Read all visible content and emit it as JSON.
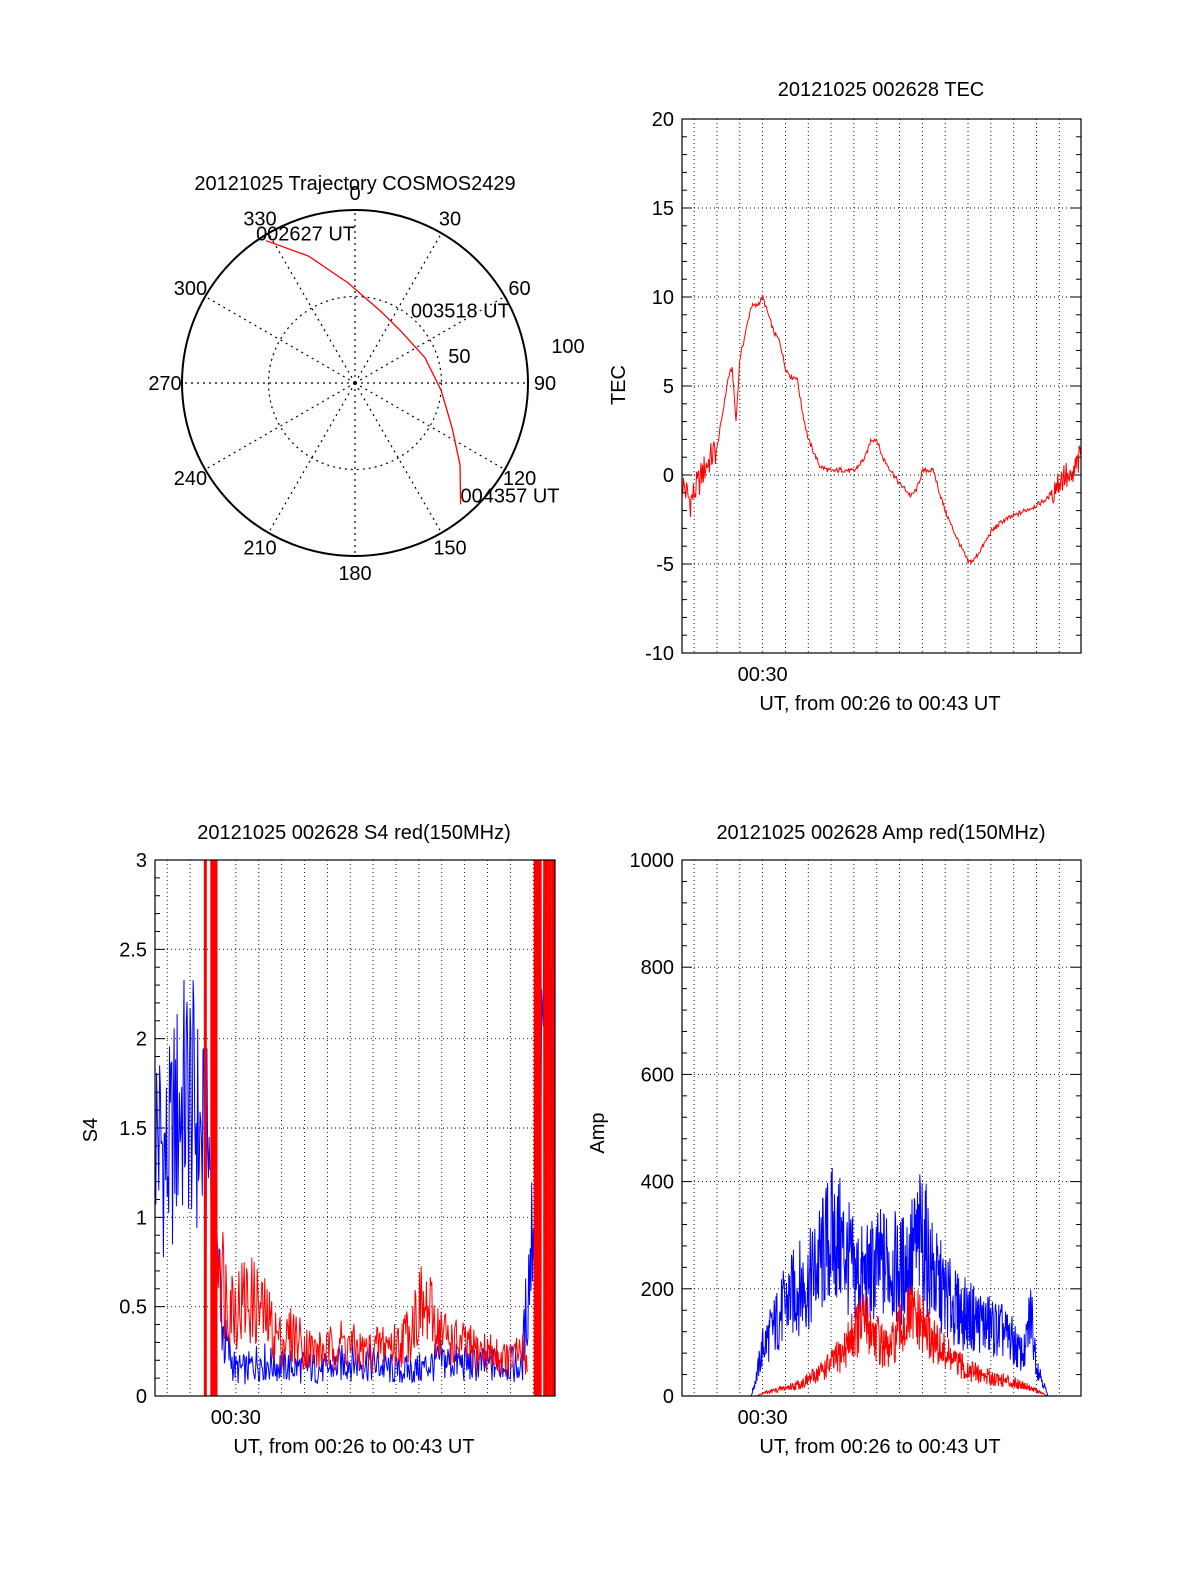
{
  "colors": {
    "red": "#ff0000",
    "blue": "#0000ff",
    "axis": "#000000",
    "grid": "#000000"
  },
  "chart_data": [
    {
      "id": "trajectory",
      "type": "polar",
      "title": "20121025 Trajectory COSMOS2429",
      "angle_labels": [
        "0",
        "30",
        "60",
        "90",
        "120",
        "150",
        "180",
        "210",
        "240",
        "270",
        "300",
        "330"
      ],
      "radial_labels": [
        "50",
        "100"
      ],
      "r_max": 100,
      "grid": true,
      "track": {
        "color": "#ff0000",
        "points": [
          {
            "az": 328,
            "el_r": 97
          },
          {
            "az": 340,
            "el_r": 78
          },
          {
            "az": 356,
            "el_r": 58
          },
          {
            "az": 20,
            "el_r": 44
          },
          {
            "az": 42,
            "el_r": 40
          },
          {
            "az": 70,
            "el_r": 43
          },
          {
            "az": 95,
            "el_r": 50
          },
          {
            "az": 115,
            "el_r": 62
          },
          {
            "az": 128,
            "el_r": 77
          },
          {
            "az": 139,
            "el_r": 93
          }
        ]
      },
      "annotations": [
        {
          "text": "002627 UT",
          "az": 328,
          "el_r": 97
        },
        {
          "text": "003518 UT",
          "az": 56,
          "el_r": 40
        },
        {
          "text": "004357 UT",
          "az": 139,
          "el_r": 93
        }
      ]
    },
    {
      "id": "tec",
      "type": "line",
      "title": "20121025 002628 TEC",
      "xlabel": "UT, from 00:26 to 00:43 UT",
      "ylabel": "TEC",
      "xlim": [
        "00:26:28",
        "00:43:57"
      ],
      "ylim": [
        -10,
        20
      ],
      "yticks": [
        "-10",
        "-5",
        "0",
        "5",
        "10",
        "15",
        "20"
      ],
      "xtick_labels": [
        {
          "time": "00:30:00",
          "label": "00:30"
        }
      ],
      "grid": true,
      "series": [
        {
          "color": "#ff0000",
          "x": [
            "00:26:30",
            "00:26:50",
            "00:27:10",
            "00:27:30",
            "00:27:45",
            "00:28:00",
            "00:28:15",
            "00:28:30",
            "00:28:40",
            "00:28:50",
            "00:29:00",
            "00:29:15",
            "00:29:30",
            "00:29:45",
            "00:30:00",
            "00:30:15",
            "00:30:30",
            "00:30:45",
            "00:31:00",
            "00:31:15",
            "00:31:30",
            "00:31:45",
            "00:32:00",
            "00:32:30",
            "00:33:00",
            "00:33:30",
            "00:34:00",
            "00:34:30",
            "00:34:45",
            "00:35:00",
            "00:35:15",
            "00:35:30",
            "00:35:45",
            "00:36:00",
            "00:36:15",
            "00:36:30",
            "00:36:45",
            "00:37:00",
            "00:37:15",
            "00:37:30",
            "00:37:45",
            "00:38:00",
            "00:38:15",
            "00:38:30",
            "00:38:45",
            "00:39:00",
            "00:39:15",
            "00:39:30",
            "00:39:45",
            "00:40:00",
            "00:40:30",
            "00:41:00",
            "00:41:30",
            "00:42:00",
            "00:42:30",
            "00:42:45",
            "00:43:00",
            "00:43:15",
            "00:43:30",
            "00:43:45",
            "00:43:57"
          ],
          "values": [
            -0.5,
            -1.5,
            -0.5,
            0.5,
            1.0,
            1.5,
            3.5,
            5.5,
            6.0,
            3.0,
            6.5,
            8.0,
            9.5,
            9.5,
            10.0,
            9.0,
            8.0,
            7.5,
            6.0,
            5.5,
            5.5,
            3.5,
            2.0,
            0.5,
            0.2,
            0.3,
            0.2,
            1.0,
            2.0,
            2.0,
            1.0,
            0.5,
            0.0,
            -0.5,
            -0.8,
            -1.2,
            -0.8,
            0.2,
            0.3,
            0.2,
            -1.0,
            -2.0,
            -2.8,
            -3.5,
            -4.2,
            -4.9,
            -4.8,
            -4.3,
            -3.8,
            -3.2,
            -2.6,
            -2.3,
            -2.0,
            -1.7,
            -1.3,
            -0.8,
            -0.3,
            0.0,
            -0.5,
            0.5,
            1.0
          ]
        }
      ]
    },
    {
      "id": "s4",
      "type": "line",
      "title": "20121025 002628 S4 red(150MHz)",
      "xlabel": "UT, from 00:26 to 00:43 UT",
      "ylabel": "S4",
      "xlim": [
        "00:26:28",
        "00:43:57"
      ],
      "ylim": [
        0,
        3
      ],
      "yticks": [
        "0",
        "0.5",
        "1",
        "1.5",
        "2",
        "2.5",
        "3"
      ],
      "xtick_labels": [
        {
          "time": "00:30:00",
          "label": "00:30"
        }
      ],
      "grid": true,
      "series": [
        {
          "color": "#0000ff",
          "x": [
            "00:26:30",
            "00:27:00",
            "00:27:30",
            "00:28:00",
            "00:28:30",
            "00:29:00",
            "00:29:15",
            "00:29:30",
            "00:30:00",
            "00:30:30",
            "00:31:00",
            "00:31:30",
            "00:32:00",
            "00:33:00",
            "00:34:00",
            "00:35:00",
            "00:36:00",
            "00:37:00",
            "00:38:00",
            "00:39:00",
            "00:40:00",
            "00:41:00",
            "00:42:00",
            "00:42:30",
            "00:43:00",
            "00:43:15",
            "00:43:30",
            "00:43:57"
          ],
          "values": [
            1.5,
            1.3,
            1.6,
            1.7,
            1.4,
            1.3,
            0.7,
            0.3,
            0.15,
            0.15,
            0.2,
            0.18,
            0.17,
            0.16,
            0.15,
            0.2,
            0.18,
            0.14,
            0.15,
            0.2,
            0.18,
            0.17,
            0.18,
            0.15,
            1.0,
            1.7,
            2.2,
            1.8
          ]
        },
        {
          "color": "#ff0000",
          "x": [
            "00:29:00",
            "00:29:15",
            "00:29:30",
            "00:30:00",
            "00:30:30",
            "00:31:00",
            "00:31:30",
            "00:32:00",
            "00:32:30",
            "00:33:00",
            "00:33:30",
            "00:34:00",
            "00:34:30",
            "00:35:00",
            "00:35:30",
            "00:36:00",
            "00:36:30",
            "00:37:00",
            "00:37:30",
            "00:38:00",
            "00:38:30",
            "00:39:00",
            "00:39:30",
            "00:40:00",
            "00:40:30",
            "00:41:00",
            "00:41:30",
            "00:42:00",
            "00:42:30",
            "00:42:45"
          ],
          "values": [
            1.4,
            0.9,
            0.6,
            0.5,
            0.55,
            0.5,
            0.4,
            0.3,
            0.35,
            0.28,
            0.25,
            0.25,
            0.3,
            0.28,
            0.25,
            0.25,
            0.3,
            0.28,
            0.35,
            0.5,
            0.45,
            0.35,
            0.3,
            0.28,
            0.25,
            0.25,
            0.22,
            0.2,
            0.25,
            0.2
          ]
        }
      ],
      "red_spike_times": [
        "00:28:40",
        "00:28:57",
        "00:29:04",
        "00:29:08",
        "00:43:05",
        "00:43:12",
        "00:43:18",
        "00:43:30",
        "00:43:36",
        "00:43:44",
        "00:43:52"
      ]
    },
    {
      "id": "amp",
      "type": "line",
      "title": "20121025 002628 Amp red(150MHz)",
      "xlabel": "UT, from 00:26 to 00:43 UT",
      "ylabel": "Amp",
      "xlim": [
        "00:26:28",
        "00:43:57"
      ],
      "ylim": [
        0,
        1000
      ],
      "yticks": [
        "0",
        "200",
        "400",
        "600",
        "800",
        "1000"
      ],
      "xtick_labels": [
        {
          "time": "00:30:00",
          "label": "00:30"
        }
      ],
      "grid": true,
      "series": [
        {
          "color": "#0000ff",
          "x": [
            "00:26:28",
            "00:29:30",
            "00:29:45",
            "00:30:00",
            "00:30:30",
            "00:31:00",
            "00:31:30",
            "00:32:00",
            "00:32:30",
            "00:33:00",
            "00:33:30",
            "00:34:00",
            "00:34:30",
            "00:35:00",
            "00:35:30",
            "00:36:00",
            "00:36:30",
            "00:37:00",
            "00:37:30",
            "00:38:00",
            "00:38:30",
            "00:39:00",
            "00:39:30",
            "00:40:00",
            "00:40:30",
            "00:41:00",
            "00:41:15",
            "00:41:30",
            "00:41:45",
            "00:42:00",
            "00:42:15",
            "00:42:30",
            "00:43:57"
          ],
          "values": [
            0,
            0,
            40,
            90,
            130,
            170,
            200,
            210,
            250,
            300,
            280,
            230,
            220,
            240,
            250,
            230,
            260,
            300,
            220,
            190,
            160,
            150,
            140,
            130,
            120,
            100,
            80,
            80,
            160,
            60,
            30,
            0,
            0
          ]
        },
        {
          "color": "#ff0000",
          "x": [
            "00:26:28",
            "00:29:45",
            "00:30:00",
            "00:30:30",
            "00:31:00",
            "00:31:30",
            "00:32:00",
            "00:32:30",
            "00:33:00",
            "00:33:30",
            "00:34:00",
            "00:34:30",
            "00:35:00",
            "00:35:30",
            "00:36:00",
            "00:36:30",
            "00:37:00",
            "00:37:30",
            "00:38:00",
            "00:38:30",
            "00:39:00",
            "00:39:30",
            "00:40:00",
            "00:40:30",
            "00:41:00",
            "00:41:30",
            "00:42:00",
            "00:42:30",
            "00:43:57"
          ],
          "values": [
            0,
            0,
            5,
            10,
            15,
            20,
            30,
            45,
            60,
            80,
            120,
            140,
            110,
            80,
            120,
            150,
            130,
            100,
            80,
            60,
            50,
            40,
            35,
            30,
            25,
            20,
            10,
            0,
            0
          ]
        }
      ]
    }
  ]
}
